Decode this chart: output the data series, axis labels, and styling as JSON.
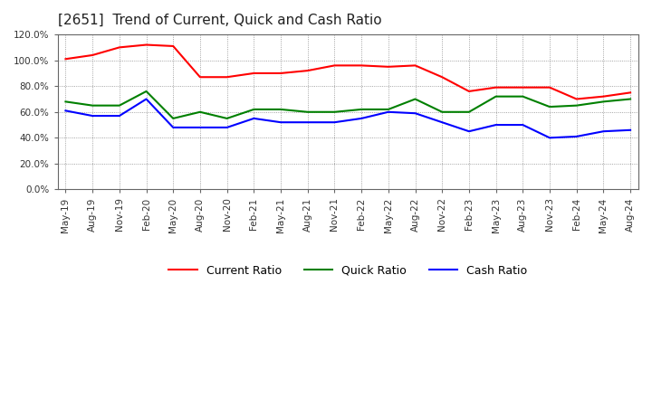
{
  "title": "[2651]  Trend of Current, Quick and Cash Ratio",
  "x_labels": [
    "May-19",
    "Aug-19",
    "Nov-19",
    "Feb-20",
    "May-20",
    "Aug-20",
    "Nov-20",
    "Feb-21",
    "May-21",
    "Aug-21",
    "Nov-21",
    "Feb-22",
    "May-22",
    "Aug-22",
    "Nov-22",
    "Feb-23",
    "May-23",
    "Aug-23",
    "Nov-23",
    "Feb-24",
    "May-24",
    "Aug-24"
  ],
  "current_ratio": [
    1.01,
    1.04,
    1.1,
    1.12,
    1.11,
    0.87,
    0.87,
    0.9,
    0.9,
    0.92,
    0.96,
    0.96,
    0.95,
    0.96,
    0.87,
    0.76,
    0.79,
    0.79,
    0.79,
    0.7,
    0.72,
    0.75
  ],
  "quick_ratio": [
    0.68,
    0.65,
    0.65,
    0.76,
    0.55,
    0.6,
    0.55,
    0.62,
    0.62,
    0.6,
    0.6,
    0.62,
    0.62,
    0.7,
    0.6,
    0.6,
    0.72,
    0.72,
    0.64,
    0.65,
    0.68,
    0.7
  ],
  "cash_ratio": [
    0.61,
    0.57,
    0.57,
    0.7,
    0.48,
    0.48,
    0.48,
    0.55,
    0.52,
    0.52,
    0.52,
    0.55,
    0.6,
    0.59,
    0.52,
    0.45,
    0.5,
    0.5,
    0.4,
    0.41,
    0.45,
    0.46
  ],
  "current_color": "#FF0000",
  "quick_color": "#008000",
  "cash_color": "#0000FF",
  "ylim": [
    0,
    1.2
  ],
  "yticks": [
    0.0,
    0.2,
    0.4,
    0.6,
    0.8,
    1.0,
    1.2
  ],
  "ytick_labels": [
    "0.0%",
    "20.0%",
    "40.0%",
    "60.0%",
    "80.0%",
    "100.0%",
    "120.0%"
  ],
  "legend_labels": [
    "Current Ratio",
    "Quick Ratio",
    "Cash Ratio"
  ],
  "background_color": "#ffffff",
  "plot_bg_color": "#ffffff",
  "grid_color": "#555555",
  "title_fontsize": 11,
  "tick_fontsize": 7.5,
  "legend_fontsize": 9,
  "line_width": 1.5
}
